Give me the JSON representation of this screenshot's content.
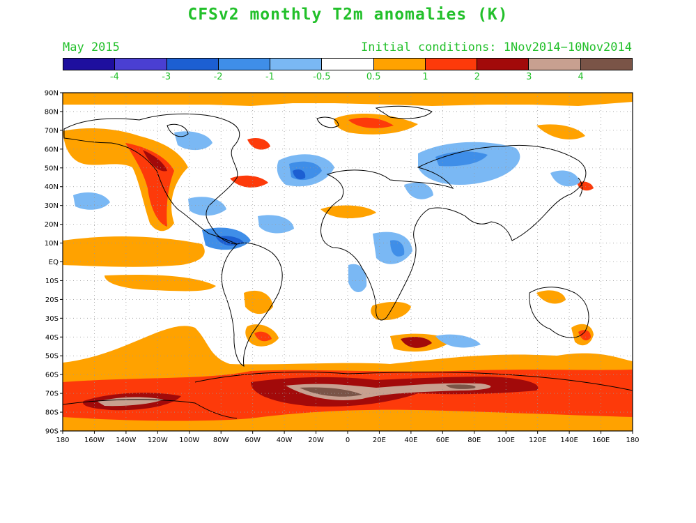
{
  "title": "CFSv2 monthly T2m anomalies (K)",
  "month_label": "May 2015",
  "initial_conditions": "Initial conditions: 1Nov2014−10Nov2014",
  "colorbar": {
    "colors": [
      "#1e0f9e",
      "#4a3fd2",
      "#1c5fd2",
      "#3f8ee8",
      "#7ab8f4",
      "#ffffff",
      "#ffa200",
      "#fd3a0a",
      "#a20a0a",
      "#c8a090",
      "#7a5447"
    ],
    "labels": [
      "-4",
      "-3",
      "-2",
      "-1",
      "-0.5",
      "0.5",
      "1",
      "2",
      "3",
      "4"
    ]
  },
  "map": {
    "lat_labels": [
      "90N",
      "80N",
      "70N",
      "60N",
      "50N",
      "40N",
      "30N",
      "20N",
      "10N",
      "EQ",
      "10S",
      "20S",
      "30S",
      "40S",
      "50S",
      "60S",
      "70S",
      "80S",
      "90S"
    ],
    "lon_labels": [
      "180",
      "160W",
      "140W",
      "120W",
      "100W",
      "80W",
      "60W",
      "40W",
      "20W",
      "0",
      "20E",
      "40E",
      "60E",
      "80E",
      "100E",
      "120E",
      "140E",
      "160E",
      "180"
    ]
  }
}
